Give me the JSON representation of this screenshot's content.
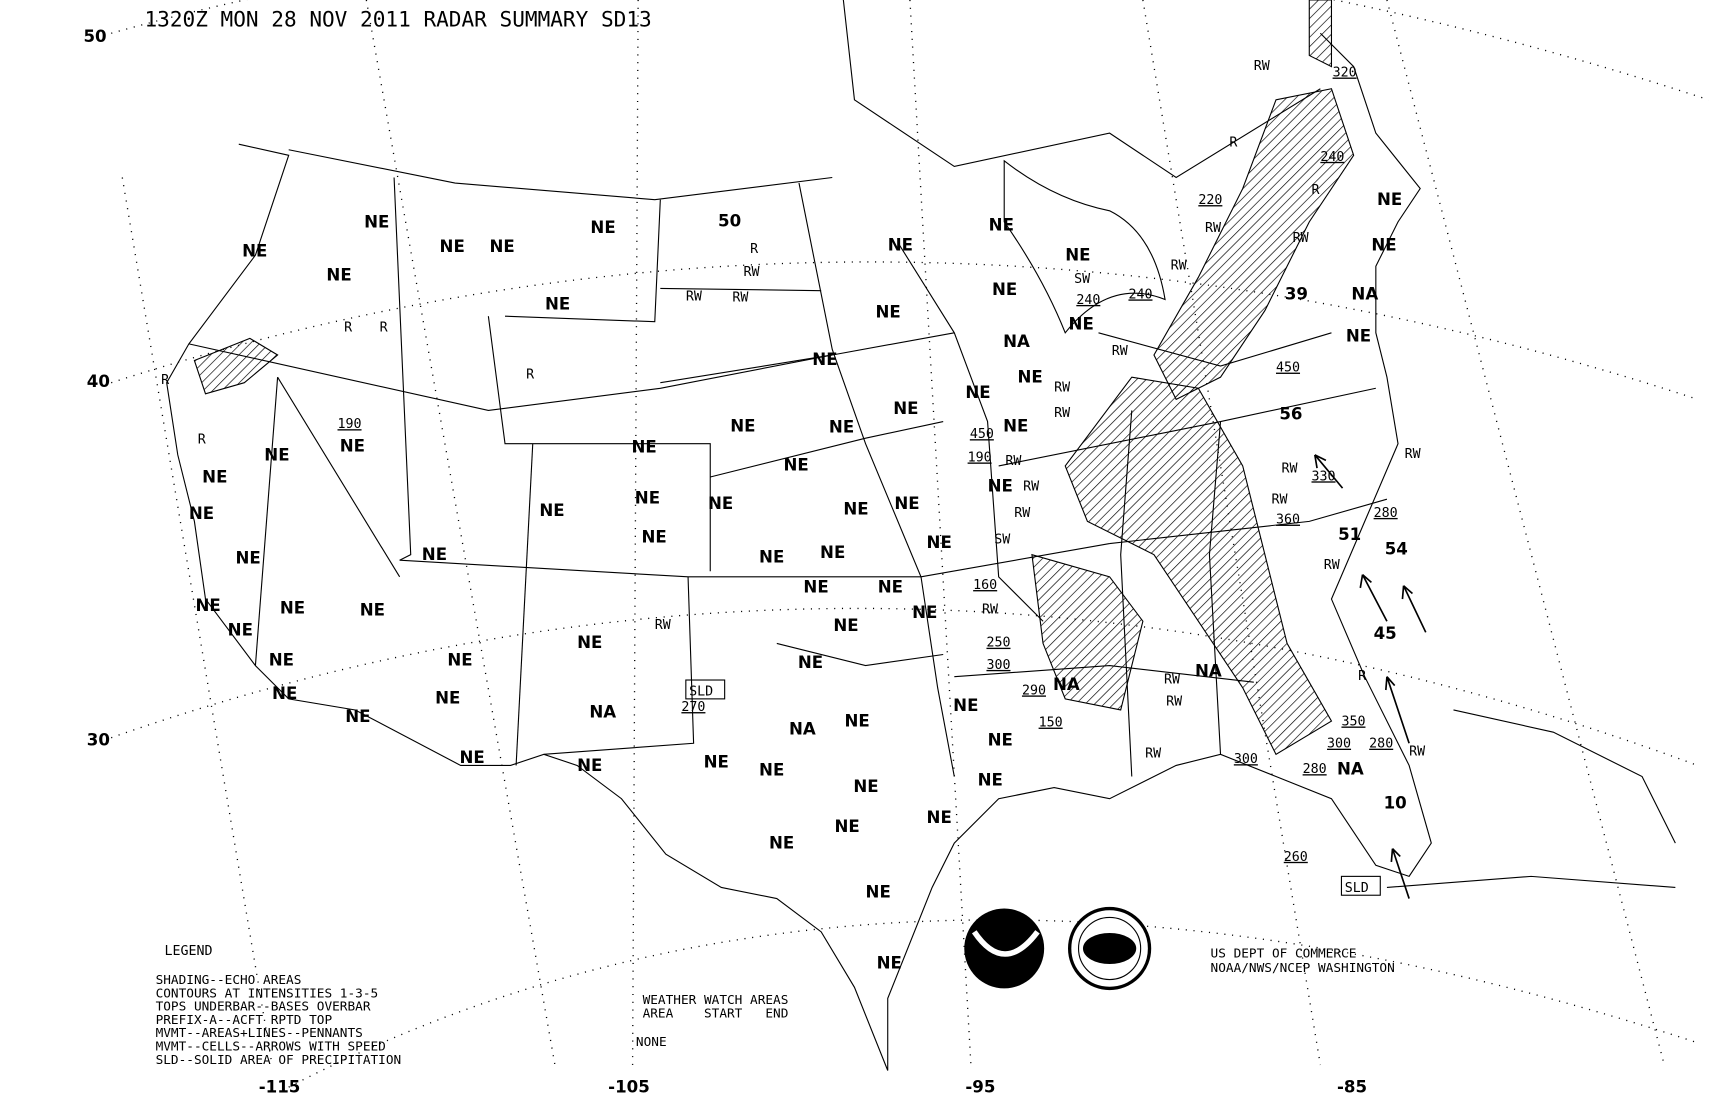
{
  "title": "1320Z MON 28 NOV 2011 RADAR SUMMARY SD13",
  "latitudes": [
    "50",
    "40",
    "30"
  ],
  "longitudes": [
    "-115",
    "-105",
    "-95",
    "-85"
  ],
  "legend": {
    "heading": "LEGEND",
    "lines": [
      "SHADING--ECHO AREAS",
      "CONTOURS AT INTENSITIES 1-3-5",
      "TOPS UNDERBAR--BASES OVERBAR",
      "PREFIX-A--ACFT RPTD TOP",
      "MVMT--AREAS+LINES--PENNANTS",
      "MVMT--CELLS--ARROWS WITH SPEED",
      "SLD--SOLID AREA OF PRECIPITATION"
    ]
  },
  "watch": {
    "heading": "WEATHER WATCH AREAS",
    "columns": "AREA    START   END",
    "value": "NONE"
  },
  "credit": [
    "US DEPT OF COMMERCE",
    "NOAA/NWS/NCEP WASHINGTON"
  ],
  "logos": [
    "NOAA",
    "NATIONAL WEATHER SERVICE"
  ],
  "ne": "NE",
  "na": "NA",
  "speeds": [
    "50",
    "39",
    "56",
    "51",
    "54",
    "45",
    "10"
  ],
  "tops": [
    "190",
    "450",
    "190",
    "160",
    "250",
    "300",
    "290",
    "150",
    "300",
    "280",
    "300",
    "280",
    "350",
    "260",
    "220",
    "240",
    "320",
    "240",
    "240",
    "450",
    "330",
    "360",
    "280",
    "270"
  ],
  "sld": [
    "SLD",
    "SLD"
  ],
  "precip": {
    "r": "R",
    "rw": "RW",
    "sw": "SW"
  }
}
